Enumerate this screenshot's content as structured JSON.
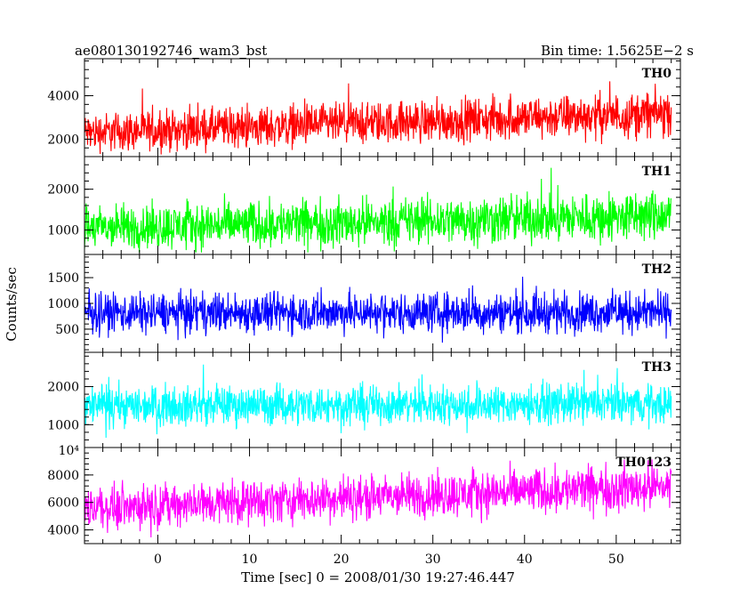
{
  "chart_data": {
    "type": "line",
    "title_left": "ae080130192746_wam3_bst",
    "title_right": "Bin time: 1.5625E−2 s",
    "ylabel": "Counts/sec",
    "xlabel": "Time [sec] 0 = 2008/01/30 19:27:46.447",
    "xlim": [
      -8,
      57
    ],
    "x_ticks": [
      0,
      10,
      20,
      30,
      40,
      50
    ],
    "series_x_range": [
      -8,
      56
    ],
    "grid": false,
    "panels": [
      {
        "name": "TH0",
        "color": "#ff0000",
        "ylim": [
          1200,
          5700
        ],
        "y_ticks": [
          2000,
          4000
        ],
        "trend": [
          [
            -8,
            2300
          ],
          [
            56,
            3200
          ]
        ],
        "noise_spread": [
          [
            -8,
            1300
          ],
          [
            56,
            1500
          ]
        ],
        "y_range_shown": [
          1300,
          5600
        ]
      },
      {
        "name": "TH1",
        "color": "#00ff00",
        "ylim": [
          400,
          2800
        ],
        "y_ticks": [
          1000,
          2000
        ],
        "trend": [
          [
            -8,
            1050
          ],
          [
            56,
            1350
          ]
        ],
        "noise_spread": [
          [
            -8,
            800
          ],
          [
            56,
            900
          ]
        ],
        "y_range_shown": [
          450,
          2650
        ]
      },
      {
        "name": "TH2",
        "color": "#0000ff",
        "ylim": [
          50,
          1950
        ],
        "y_ticks": [
          500,
          1000,
          1500
        ],
        "trend": [
          [
            -8,
            820
          ],
          [
            56,
            830
          ]
        ],
        "noise_spread": [
          [
            -8,
            560
          ],
          [
            56,
            560
          ]
        ],
        "y_range_shown": [
          100,
          1900
        ]
      },
      {
        "name": "TH3",
        "color": "#00ffff",
        "ylim": [
          400,
          2900
        ],
        "y_ticks": [
          1000,
          2000
        ],
        "trend": [
          [
            -8,
            1500
          ],
          [
            56,
            1550
          ]
        ],
        "noise_spread": [
          [
            -8,
            750
          ],
          [
            56,
            750
          ]
        ],
        "y_range_shown": [
          500,
          2800
        ],
        "exponent_label": "10⁴"
      },
      {
        "name": "TH0123",
        "color": "#ff00ff",
        "ylim": [
          3000,
          10000
        ],
        "y_ticks": [
          4000,
          6000,
          8000
        ],
        "trend": [
          [
            -8,
            5600
          ],
          [
            56,
            7200
          ]
        ],
        "noise_spread": [
          [
            -8,
            2200
          ],
          [
            56,
            2500
          ]
        ],
        "y_range_shown": [
          3200,
          9600
        ]
      }
    ]
  }
}
